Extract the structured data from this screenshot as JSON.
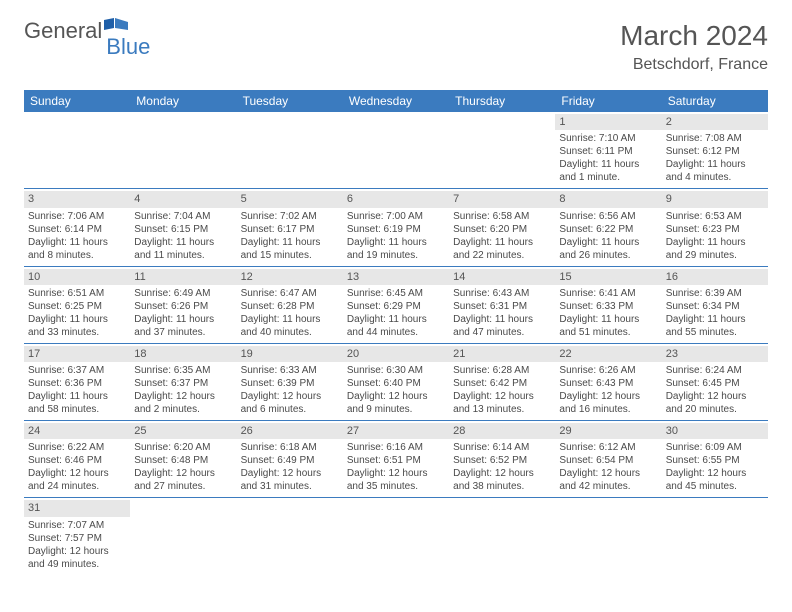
{
  "logo": {
    "text_general": "General",
    "text_blue": "Blue"
  },
  "title": {
    "month": "March 2024",
    "location": "Betschdorf, France"
  },
  "colors": {
    "header_bg": "#3b7bbf",
    "header_text": "#ffffff",
    "daynum_bg": "#e7e7e7",
    "text": "#555555",
    "detail_text": "#4a4a4a",
    "week_border": "#3b7bbf"
  },
  "day_names": [
    "Sunday",
    "Monday",
    "Tuesday",
    "Wednesday",
    "Thursday",
    "Friday",
    "Saturday"
  ],
  "days": [
    {
      "n": "",
      "empty": true
    },
    {
      "n": "",
      "empty": true
    },
    {
      "n": "",
      "empty": true
    },
    {
      "n": "",
      "empty": true
    },
    {
      "n": "",
      "empty": true
    },
    {
      "n": "1",
      "sunrise": "Sunrise: 7:10 AM",
      "sunset": "Sunset: 6:11 PM",
      "daylight": "Daylight: 11 hours and 1 minute."
    },
    {
      "n": "2",
      "sunrise": "Sunrise: 7:08 AM",
      "sunset": "Sunset: 6:12 PM",
      "daylight": "Daylight: 11 hours and 4 minutes."
    },
    {
      "n": "3",
      "sunrise": "Sunrise: 7:06 AM",
      "sunset": "Sunset: 6:14 PM",
      "daylight": "Daylight: 11 hours and 8 minutes."
    },
    {
      "n": "4",
      "sunrise": "Sunrise: 7:04 AM",
      "sunset": "Sunset: 6:15 PM",
      "daylight": "Daylight: 11 hours and 11 minutes."
    },
    {
      "n": "5",
      "sunrise": "Sunrise: 7:02 AM",
      "sunset": "Sunset: 6:17 PM",
      "daylight": "Daylight: 11 hours and 15 minutes."
    },
    {
      "n": "6",
      "sunrise": "Sunrise: 7:00 AM",
      "sunset": "Sunset: 6:19 PM",
      "daylight": "Daylight: 11 hours and 19 minutes."
    },
    {
      "n": "7",
      "sunrise": "Sunrise: 6:58 AM",
      "sunset": "Sunset: 6:20 PM",
      "daylight": "Daylight: 11 hours and 22 minutes."
    },
    {
      "n": "8",
      "sunrise": "Sunrise: 6:56 AM",
      "sunset": "Sunset: 6:22 PM",
      "daylight": "Daylight: 11 hours and 26 minutes."
    },
    {
      "n": "9",
      "sunrise": "Sunrise: 6:53 AM",
      "sunset": "Sunset: 6:23 PM",
      "daylight": "Daylight: 11 hours and 29 minutes."
    },
    {
      "n": "10",
      "sunrise": "Sunrise: 6:51 AM",
      "sunset": "Sunset: 6:25 PM",
      "daylight": "Daylight: 11 hours and 33 minutes."
    },
    {
      "n": "11",
      "sunrise": "Sunrise: 6:49 AM",
      "sunset": "Sunset: 6:26 PM",
      "daylight": "Daylight: 11 hours and 37 minutes."
    },
    {
      "n": "12",
      "sunrise": "Sunrise: 6:47 AM",
      "sunset": "Sunset: 6:28 PM",
      "daylight": "Daylight: 11 hours and 40 minutes."
    },
    {
      "n": "13",
      "sunrise": "Sunrise: 6:45 AM",
      "sunset": "Sunset: 6:29 PM",
      "daylight": "Daylight: 11 hours and 44 minutes."
    },
    {
      "n": "14",
      "sunrise": "Sunrise: 6:43 AM",
      "sunset": "Sunset: 6:31 PM",
      "daylight": "Daylight: 11 hours and 47 minutes."
    },
    {
      "n": "15",
      "sunrise": "Sunrise: 6:41 AM",
      "sunset": "Sunset: 6:33 PM",
      "daylight": "Daylight: 11 hours and 51 minutes."
    },
    {
      "n": "16",
      "sunrise": "Sunrise: 6:39 AM",
      "sunset": "Sunset: 6:34 PM",
      "daylight": "Daylight: 11 hours and 55 minutes."
    },
    {
      "n": "17",
      "sunrise": "Sunrise: 6:37 AM",
      "sunset": "Sunset: 6:36 PM",
      "daylight": "Daylight: 11 hours and 58 minutes."
    },
    {
      "n": "18",
      "sunrise": "Sunrise: 6:35 AM",
      "sunset": "Sunset: 6:37 PM",
      "daylight": "Daylight: 12 hours and 2 minutes."
    },
    {
      "n": "19",
      "sunrise": "Sunrise: 6:33 AM",
      "sunset": "Sunset: 6:39 PM",
      "daylight": "Daylight: 12 hours and 6 minutes."
    },
    {
      "n": "20",
      "sunrise": "Sunrise: 6:30 AM",
      "sunset": "Sunset: 6:40 PM",
      "daylight": "Daylight: 12 hours and 9 minutes."
    },
    {
      "n": "21",
      "sunrise": "Sunrise: 6:28 AM",
      "sunset": "Sunset: 6:42 PM",
      "daylight": "Daylight: 12 hours and 13 minutes."
    },
    {
      "n": "22",
      "sunrise": "Sunrise: 6:26 AM",
      "sunset": "Sunset: 6:43 PM",
      "daylight": "Daylight: 12 hours and 16 minutes."
    },
    {
      "n": "23",
      "sunrise": "Sunrise: 6:24 AM",
      "sunset": "Sunset: 6:45 PM",
      "daylight": "Daylight: 12 hours and 20 minutes."
    },
    {
      "n": "24",
      "sunrise": "Sunrise: 6:22 AM",
      "sunset": "Sunset: 6:46 PM",
      "daylight": "Daylight: 12 hours and 24 minutes."
    },
    {
      "n": "25",
      "sunrise": "Sunrise: 6:20 AM",
      "sunset": "Sunset: 6:48 PM",
      "daylight": "Daylight: 12 hours and 27 minutes."
    },
    {
      "n": "26",
      "sunrise": "Sunrise: 6:18 AM",
      "sunset": "Sunset: 6:49 PM",
      "daylight": "Daylight: 12 hours and 31 minutes."
    },
    {
      "n": "27",
      "sunrise": "Sunrise: 6:16 AM",
      "sunset": "Sunset: 6:51 PM",
      "daylight": "Daylight: 12 hours and 35 minutes."
    },
    {
      "n": "28",
      "sunrise": "Sunrise: 6:14 AM",
      "sunset": "Sunset: 6:52 PM",
      "daylight": "Daylight: 12 hours and 38 minutes."
    },
    {
      "n": "29",
      "sunrise": "Sunrise: 6:12 AM",
      "sunset": "Sunset: 6:54 PM",
      "daylight": "Daylight: 12 hours and 42 minutes."
    },
    {
      "n": "30",
      "sunrise": "Sunrise: 6:09 AM",
      "sunset": "Sunset: 6:55 PM",
      "daylight": "Daylight: 12 hours and 45 minutes."
    },
    {
      "n": "31",
      "sunrise": "Sunrise: 7:07 AM",
      "sunset": "Sunset: 7:57 PM",
      "daylight": "Daylight: 12 hours and 49 minutes."
    },
    {
      "n": "",
      "empty": true
    },
    {
      "n": "",
      "empty": true
    },
    {
      "n": "",
      "empty": true
    },
    {
      "n": "",
      "empty": true
    },
    {
      "n": "",
      "empty": true
    },
    {
      "n": "",
      "empty": true
    }
  ]
}
